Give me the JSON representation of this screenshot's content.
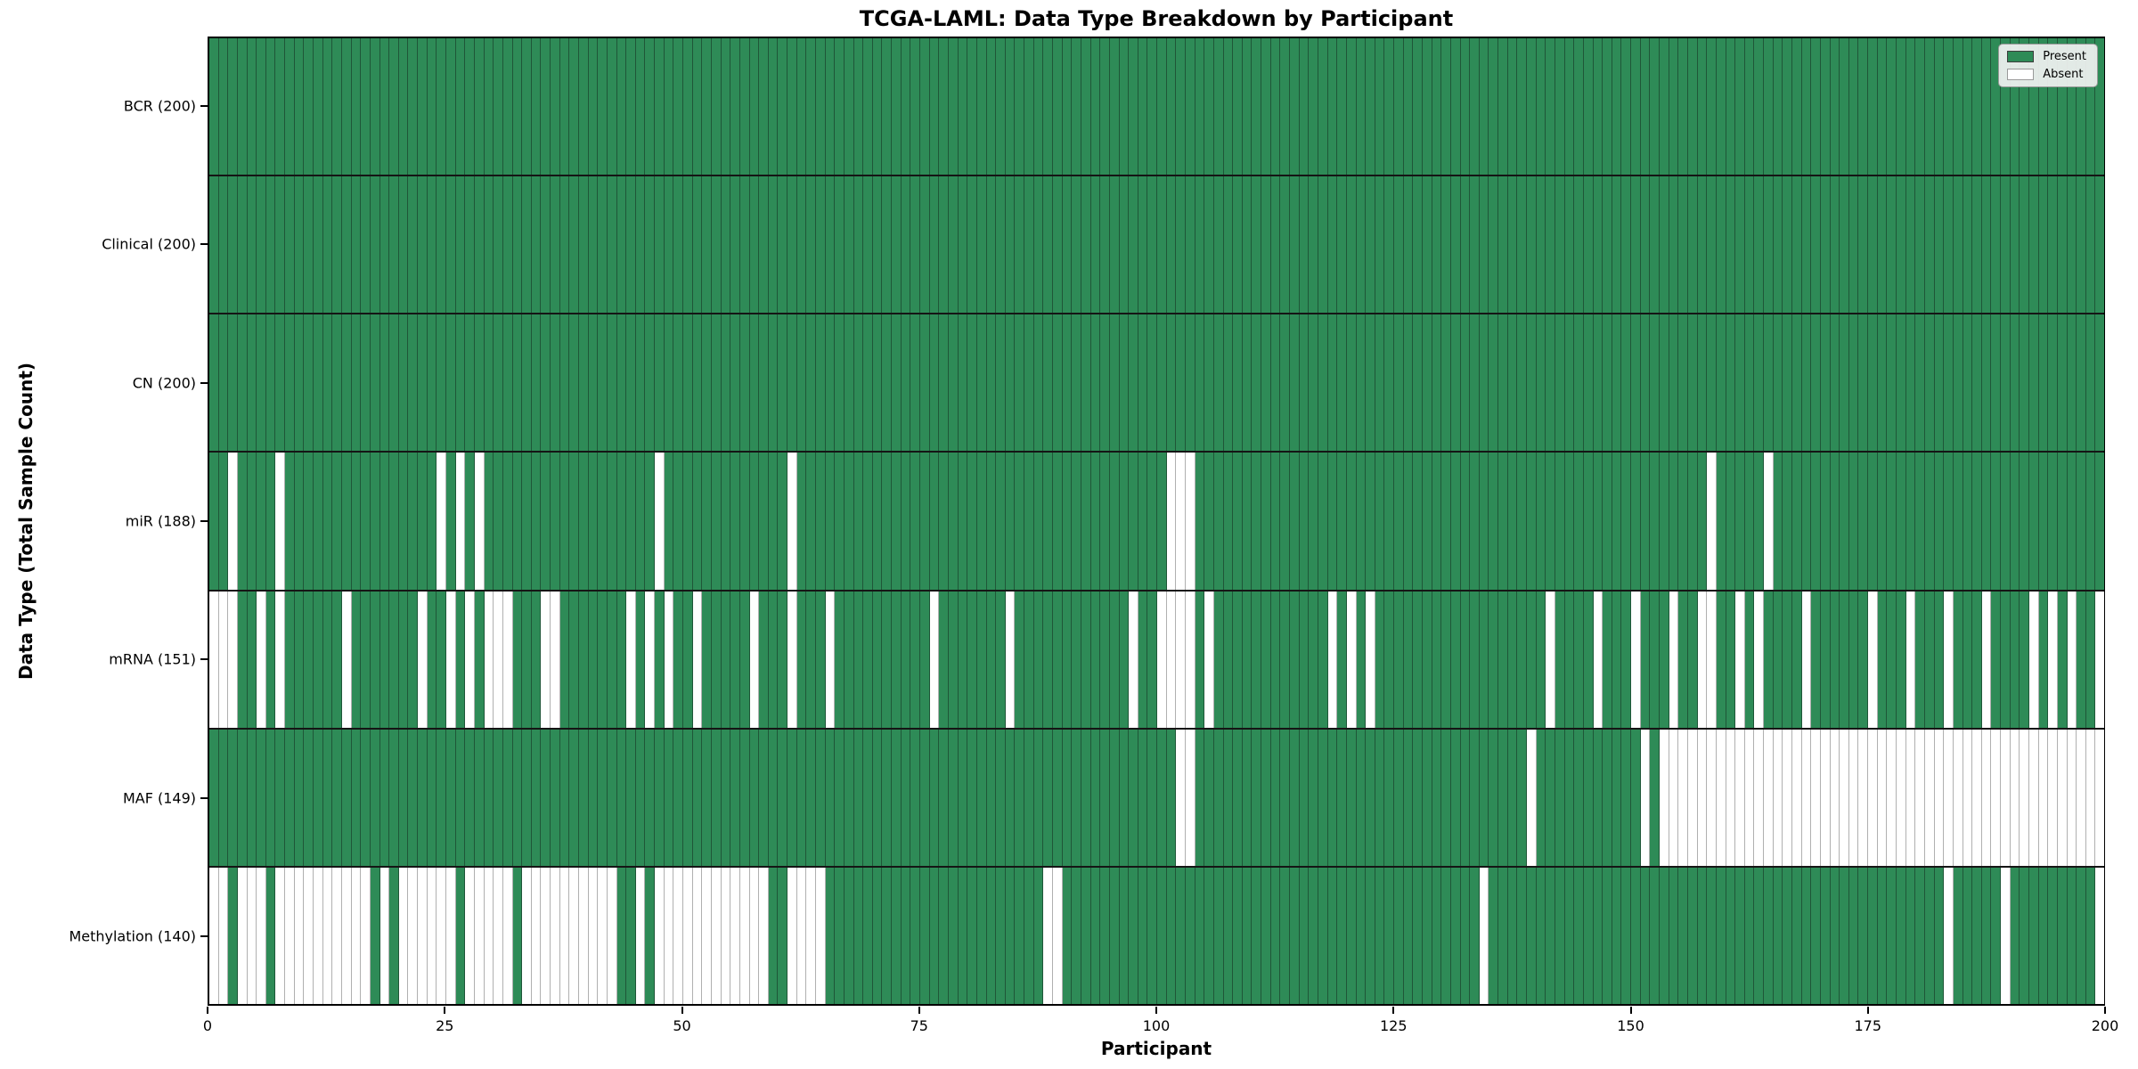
{
  "title": "TCGA-LAML: Data Type Breakdown by Participant",
  "xlabel": "Participant",
  "ylabel": "Data Type (Total Sample Count)",
  "legend": {
    "present_label": "Present",
    "absent_label": "Absent"
  },
  "colors": {
    "present": "#2e8b57",
    "absent": "#ffffff",
    "row_separator": "#151515",
    "grid_on_green": "#1f5638",
    "grid_on_white": "#b0b0b0"
  },
  "chart_data": {
    "type": "heatmap",
    "x_axis": {
      "label": "Participant",
      "range": [
        0,
        200
      ],
      "ticks": [
        0,
        25,
        50,
        75,
        100,
        125,
        150,
        175,
        200
      ]
    },
    "n_participants": 200,
    "legend_position": "upper right",
    "cell_states": [
      "Present",
      "Absent"
    ],
    "rows": [
      {
        "label": "BCR (200)",
        "data_type": "BCR",
        "present_count": 200,
        "absent": []
      },
      {
        "label": "Clinical (200)",
        "data_type": "Clinical",
        "present_count": 200,
        "absent": []
      },
      {
        "label": "CN (200)",
        "data_type": "CN",
        "present_count": 200,
        "absent": []
      },
      {
        "label": "miR (188)",
        "data_type": "miR",
        "present_count": 188,
        "absent": [
          2,
          7,
          24,
          26,
          28,
          47,
          61,
          101,
          102,
          103,
          158,
          164
        ]
      },
      {
        "label": "mRNA (151)",
        "data_type": "mRNA",
        "present_count": 151,
        "absent": [
          0,
          1,
          2,
          5,
          7,
          14,
          22,
          25,
          27,
          29,
          30,
          31,
          35,
          36,
          44,
          46,
          48,
          51,
          57,
          61,
          65,
          76,
          84,
          97,
          100,
          101,
          102,
          103,
          105,
          118,
          120,
          122,
          141,
          146,
          150,
          154,
          157,
          158,
          161,
          163,
          168,
          175,
          179,
          183,
          187,
          192,
          194,
          196,
          199
        ]
      },
      {
        "label": "MAF (149)",
        "data_type": "MAF",
        "present_count": 149,
        "absent": [
          102,
          103,
          139,
          151,
          153,
          154,
          155,
          156,
          157,
          158,
          159,
          160,
          161,
          162,
          163,
          164,
          165,
          166,
          167,
          168,
          169,
          170,
          171,
          172,
          173,
          174,
          175,
          176,
          177,
          178,
          179,
          180,
          181,
          182,
          183,
          184,
          185,
          186,
          187,
          188,
          189,
          190,
          191,
          192,
          193,
          194,
          195,
          196,
          197,
          198,
          199
        ]
      },
      {
        "label": "Methylation (140)",
        "data_type": "Methylation",
        "present_count": 140,
        "absent": [
          0,
          1,
          3,
          4,
          5,
          7,
          8,
          9,
          10,
          11,
          12,
          13,
          14,
          15,
          16,
          18,
          20,
          21,
          22,
          23,
          24,
          25,
          27,
          28,
          29,
          30,
          31,
          33,
          34,
          35,
          36,
          37,
          38,
          39,
          40,
          41,
          42,
          45,
          47,
          48,
          49,
          50,
          51,
          52,
          53,
          54,
          55,
          56,
          57,
          58,
          61,
          62,
          63,
          64,
          88,
          89,
          134,
          183,
          189,
          199
        ]
      }
    ]
  }
}
